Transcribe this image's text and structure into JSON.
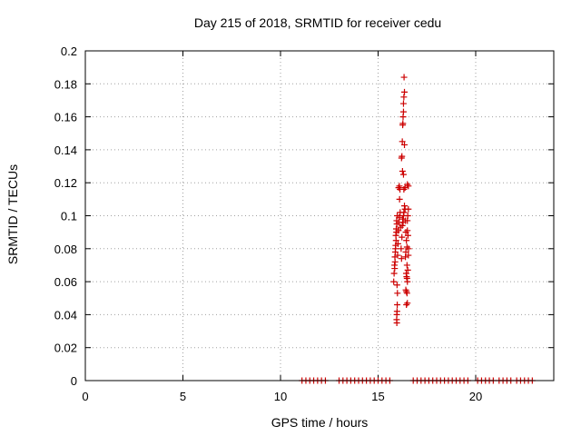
{
  "chart_data": {
    "type": "scatter",
    "title": "Day 215 of 2018, SRMTID for receiver cedu",
    "xlabel": "GPS time / hours",
    "ylabel": "SRMTID / TECUs",
    "xlim": [
      0,
      24
    ],
    "ylim": [
      0,
      0.2
    ],
    "x_ticks": [
      0,
      5,
      10,
      15,
      20
    ],
    "y_ticks": [
      0,
      0.02,
      0.04,
      0.06,
      0.08,
      0.1,
      0.12,
      0.14,
      0.16,
      0.18,
      0.2
    ],
    "grid": true,
    "marker": "+",
    "marker_color": "#cc0000",
    "series": [
      {
        "points": [
          [
            11.1,
            0
          ],
          [
            11.3,
            0
          ],
          [
            11.5,
            0
          ],
          [
            11.7,
            0
          ],
          [
            11.9,
            0
          ],
          [
            12.1,
            0
          ],
          [
            12.3,
            0
          ],
          [
            13.0,
            0
          ],
          [
            13.2,
            0
          ],
          [
            13.4,
            0
          ],
          [
            13.6,
            0
          ],
          [
            13.8,
            0
          ],
          [
            14.0,
            0
          ],
          [
            14.2,
            0
          ],
          [
            14.4,
            0
          ],
          [
            14.6,
            0
          ],
          [
            14.8,
            0
          ],
          [
            15.0,
            0
          ],
          [
            15.2,
            0
          ],
          [
            15.4,
            0
          ],
          [
            15.6,
            0
          ],
          [
            16.8,
            0
          ],
          [
            17.0,
            0
          ],
          [
            17.2,
            0
          ],
          [
            17.4,
            0
          ],
          [
            17.6,
            0
          ],
          [
            17.8,
            0
          ],
          [
            18.0,
            0
          ],
          [
            18.2,
            0
          ],
          [
            18.4,
            0
          ],
          [
            18.6,
            0
          ],
          [
            18.8,
            0
          ],
          [
            19.0,
            0
          ],
          [
            19.2,
            0
          ],
          [
            19.4,
            0
          ],
          [
            19.6,
            0
          ],
          [
            20.1,
            0
          ],
          [
            20.3,
            0
          ],
          [
            20.5,
            0
          ],
          [
            20.7,
            0
          ],
          [
            20.9,
            0
          ],
          [
            21.2,
            0
          ],
          [
            21.4,
            0
          ],
          [
            21.6,
            0
          ],
          [
            21.8,
            0
          ],
          [
            22.1,
            0
          ],
          [
            22.3,
            0
          ],
          [
            22.5,
            0
          ],
          [
            22.7,
            0
          ],
          [
            22.9,
            0
          ],
          [
            15.8,
            0.06
          ],
          [
            15.82,
            0.065
          ],
          [
            15.84,
            0.07
          ],
          [
            15.86,
            0.075
          ],
          [
            15.88,
            0.078
          ],
          [
            15.9,
            0.082
          ],
          [
            15.92,
            0.085
          ],
          [
            15.94,
            0.09
          ],
          [
            15.96,
            0.095
          ],
          [
            15.98,
            0.1
          ],
          [
            15.85,
            0.068
          ],
          [
            15.87,
            0.072
          ],
          [
            15.89,
            0.08
          ],
          [
            15.91,
            0.088
          ],
          [
            15.93,
            0.092
          ],
          [
            15.95,
            0.097
          ],
          [
            15.97,
            0.058
          ],
          [
            15.99,
            0.053
          ],
          [
            15.95,
            0.037
          ],
          [
            15.96,
            0.04
          ],
          [
            15.97,
            0.042
          ],
          [
            15.96,
            0.035
          ],
          [
            15.98,
            0.046
          ],
          [
            16.0,
            0.076
          ],
          [
            16.02,
            0.083
          ],
          [
            16.04,
            0.091
          ],
          [
            16.06,
            0.096
          ],
          [
            16.08,
            0.099
          ],
          [
            16.1,
            0.11
          ],
          [
            16.12,
            0.116
          ],
          [
            16.05,
            0.117
          ],
          [
            16.09,
            0.118
          ],
          [
            16.13,
            0.102
          ],
          [
            16.15,
            0.093
          ],
          [
            16.18,
            0.08
          ],
          [
            16.2,
            0.074
          ],
          [
            16.22,
            0.087
          ],
          [
            16.24,
            0.094
          ],
          [
            16.26,
            0.098
          ],
          [
            16.28,
            0.096
          ],
          [
            16.2,
            0.135
          ],
          [
            16.24,
            0.145
          ],
          [
            16.22,
            0.136
          ],
          [
            16.26,
            0.155
          ],
          [
            16.28,
            0.16
          ],
          [
            16.3,
            0.168
          ],
          [
            16.32,
            0.172
          ],
          [
            16.35,
            0.175
          ],
          [
            16.33,
            0.184
          ],
          [
            16.3,
            0.163
          ],
          [
            16.27,
            0.156
          ],
          [
            16.25,
            0.127
          ],
          [
            16.3,
            0.125
          ],
          [
            16.35,
            0.143
          ],
          [
            16.32,
            0.116
          ],
          [
            16.38,
            0.117
          ],
          [
            16.3,
            0.1
          ],
          [
            16.32,
            0.102
          ],
          [
            16.35,
            0.106
          ],
          [
            16.38,
            0.104
          ],
          [
            16.4,
            0.097
          ],
          [
            16.42,
            0.09
          ],
          [
            16.45,
            0.085
          ],
          [
            16.48,
            0.081
          ],
          [
            16.4,
            0.075
          ],
          [
            16.42,
            0.078
          ],
          [
            16.44,
            0.065
          ],
          [
            16.46,
            0.063
          ],
          [
            16.48,
            0.062
          ],
          [
            16.5,
            0.06
          ],
          [
            16.42,
            0.055
          ],
          [
            16.45,
            0.054
          ],
          [
            16.48,
            0.053
          ],
          [
            16.5,
            0.047
          ],
          [
            16.45,
            0.046
          ],
          [
            16.5,
            0.097
          ],
          [
            16.52,
            0.1
          ],
          [
            16.55,
            0.104
          ],
          [
            16.5,
            0.091
          ],
          [
            16.53,
            0.088
          ],
          [
            16.56,
            0.08
          ],
          [
            16.55,
            0.076
          ],
          [
            16.48,
            0.07
          ],
          [
            16.52,
            0.067
          ],
          [
            16.5,
            0.119
          ],
          [
            16.55,
            0.118
          ]
        ]
      }
    ]
  }
}
